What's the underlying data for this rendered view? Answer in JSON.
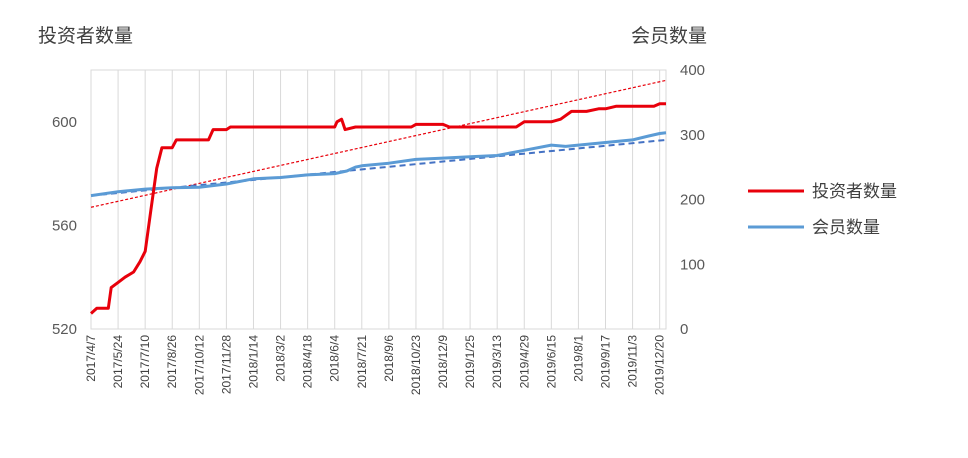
{
  "chart_data": {
    "type": "line",
    "left_axis_title": "投资者数量",
    "right_axis_title": "会员数量",
    "x_tick_labels": [
      "2017/4/7",
      "2017/5/24",
      "2017/7/10",
      "2017/8/26",
      "2017/10/12",
      "2017/11/28",
      "2018/1/14",
      "2018/3/2",
      "2018/4/18",
      "2018/6/4",
      "2018/7/21",
      "2018/9/6",
      "2018/10/23",
      "2018/12/9",
      "2019/1/25",
      "2019/3/13",
      "2019/4/29",
      "2019/6/15",
      "2019/8/1",
      "2019/9/17",
      "2019/11/3",
      "2019/12/20"
    ],
    "y_left": {
      "min": 520,
      "max": 620,
      "ticks": [
        520,
        560,
        600
      ]
    },
    "y_right": {
      "min": 0,
      "max": 400,
      "ticks": [
        0,
        100,
        200,
        300,
        400
      ]
    },
    "grid": "vertical",
    "legend_position": "right",
    "series": [
      {
        "name": "投资者数量",
        "axis": "left",
        "color": "#e8000b",
        "points": [
          [
            "2017/4/7",
            526
          ],
          [
            "2017/4/17",
            528
          ],
          [
            "2017/5/7",
            528
          ],
          [
            "2017/5/12",
            536
          ],
          [
            "2017/5/24",
            538
          ],
          [
            "2017/6/5",
            540
          ],
          [
            "2017/6/20",
            542
          ],
          [
            "2017/7/1",
            546
          ],
          [
            "2017/7/10",
            550
          ],
          [
            "2017/7/20",
            566
          ],
          [
            "2017/7/30",
            582
          ],
          [
            "2017/8/8",
            590
          ],
          [
            "2017/8/26",
            590
          ],
          [
            "2017/9/2",
            593
          ],
          [
            "2017/10/28",
            593
          ],
          [
            "2017/11/5",
            597
          ],
          [
            "2017/11/28",
            597
          ],
          [
            "2017/12/5",
            598
          ],
          [
            "2018/6/4",
            598
          ],
          [
            "2018/6/8",
            600
          ],
          [
            "2018/6/16",
            601
          ],
          [
            "2018/6/22",
            597
          ],
          [
            "2018/7/10",
            598
          ],
          [
            "2018/10/15",
            598
          ],
          [
            "2018/10/23",
            599
          ],
          [
            "2018/12/9",
            599
          ],
          [
            "2018/12/20",
            598
          ],
          [
            "2019/4/15",
            598
          ],
          [
            "2019/4/29",
            600
          ],
          [
            "2019/6/15",
            600
          ],
          [
            "2019/7/1",
            601
          ],
          [
            "2019/7/20",
            604
          ],
          [
            "2019/8/15",
            604
          ],
          [
            "2019/9/5",
            605
          ],
          [
            "2019/9/17",
            605
          ],
          [
            "2019/10/5",
            606
          ],
          [
            "2019/12/10",
            606
          ],
          [
            "2019/12/20",
            607
          ],
          [
            "2019/12/31",
            607
          ]
        ]
      },
      {
        "name": "会员数量",
        "axis": "right",
        "color": "#5b9bd5",
        "points": [
          [
            "2017/4/7",
            206
          ],
          [
            "2017/5/24",
            212
          ],
          [
            "2017/7/10",
            216
          ],
          [
            "2017/8/26",
            218
          ],
          [
            "2017/10/12",
            219
          ],
          [
            "2017/11/28",
            224
          ],
          [
            "2018/1/14",
            232
          ],
          [
            "2018/3/2",
            234
          ],
          [
            "2018/4/18",
            238
          ],
          [
            "2018/6/4",
            240
          ],
          [
            "2018/6/25",
            244
          ],
          [
            "2018/7/10",
            250
          ],
          [
            "2018/7/21",
            252
          ],
          [
            "2018/9/6",
            256
          ],
          [
            "2018/10/23",
            262
          ],
          [
            "2018/12/9",
            264
          ],
          [
            "2019/1/25",
            266
          ],
          [
            "2019/3/13",
            268
          ],
          [
            "2019/4/29",
            276
          ],
          [
            "2019/6/15",
            284
          ],
          [
            "2019/7/10",
            282
          ],
          [
            "2019/8/1",
            284
          ],
          [
            "2019/9/17",
            288
          ],
          [
            "2019/11/3",
            292
          ],
          [
            "2019/12/1",
            298
          ],
          [
            "2019/12/20",
            302
          ],
          [
            "2019/12/31",
            303
          ]
        ]
      }
    ],
    "trendlines": [
      {
        "of": "投资者数量",
        "axis": "left",
        "color": "#e8000b",
        "style": "dotted",
        "start": [
          "2017/4/7",
          567
        ],
        "end": [
          "2019/12/31",
          616
        ]
      },
      {
        "of": "会员数量",
        "axis": "right",
        "color": "#4472c4",
        "style": "dashed",
        "start": [
          "2017/4/7",
          206
        ],
        "end": [
          "2019/12/31",
          292
        ]
      }
    ]
  }
}
